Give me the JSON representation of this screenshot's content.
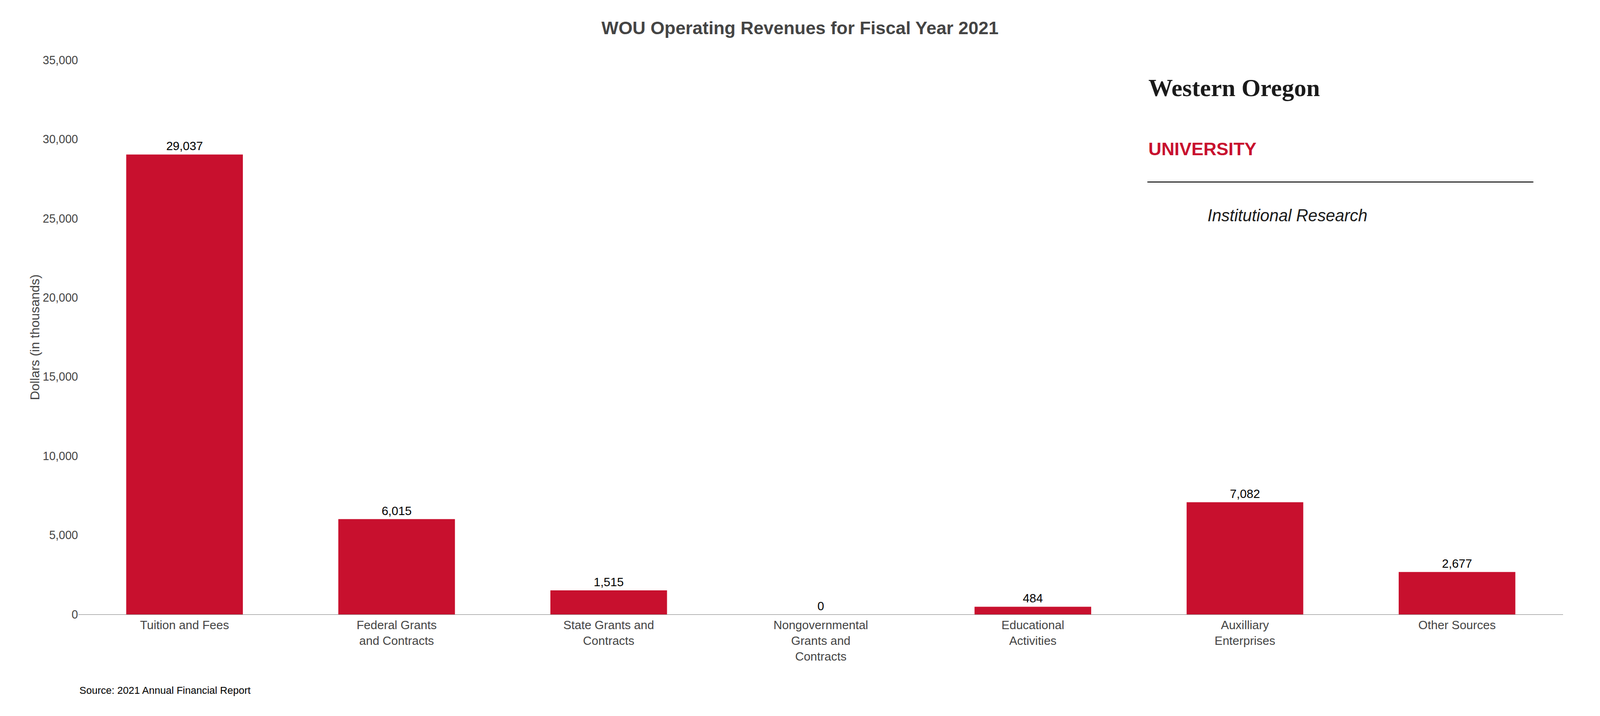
{
  "chart_data": {
    "type": "bar",
    "title": "WOU Operating Revenues for Fiscal Year 2021",
    "ylabel": "Dollars (in thousands)",
    "categories": [
      "Tuition and Fees",
      "Federal Grants\nand Contracts",
      "State Grants and\nContracts",
      "Nongovernmental\nGrants and\nContracts",
      "Educational\nActivities",
      "Auxilliary\nEnterprises",
      "Other Sources"
    ],
    "values": [
      29037,
      6015,
      1515,
      0,
      484,
      7082,
      2677
    ],
    "value_labels": [
      "29,037",
      "6,015",
      "1,515",
      "0",
      "484",
      "7,082",
      "2,677"
    ],
    "data_labels": true,
    "color": "#C8102E",
    "ylim": [
      0,
      35000
    ],
    "yticks": [
      0,
      {
        "value": 5000,
        "label": "5,000"
      },
      {
        "value": 10000,
        "label": "10,000"
      },
      {
        "value": 15000,
        "label": "15,000"
      },
      {
        "value": 20000,
        "label": "20,000"
      },
      {
        "value": 25000,
        "label": "25,000"
      },
      {
        "value": 30000,
        "label": "30,000"
      },
      {
        "value": 35000,
        "label": "35,000"
      }
    ],
    "grid": false,
    "annotations": [
      "Source: 2021 Annual Financial Report",
      "Western Oregon",
      "UNIVERSITY",
      "Institutional Research"
    ]
  }
}
